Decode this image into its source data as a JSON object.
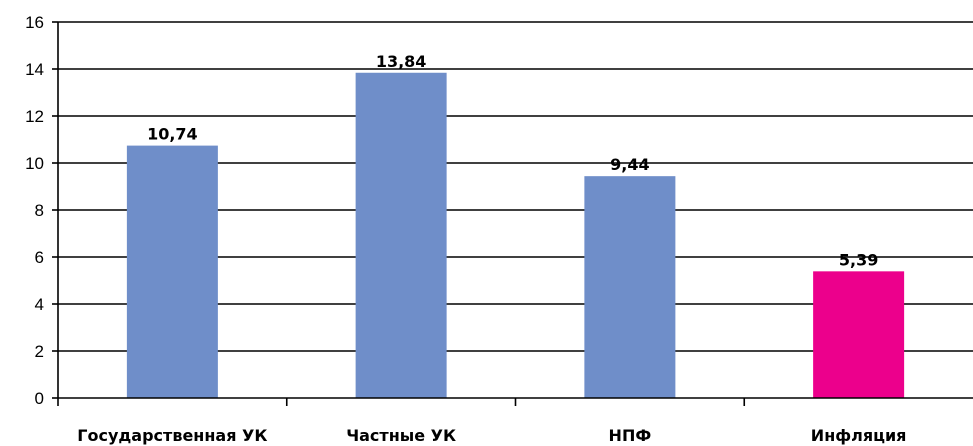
{
  "chart_data": {
    "type": "bar",
    "categories": [
      "Государственная УК",
      "Частные УК",
      "НПФ",
      "Инфляция"
    ],
    "values": [
      10.74,
      13.84,
      9.44,
      5.39
    ],
    "value_labels": [
      "10,74",
      "13,84",
      "9,44",
      "5,39"
    ],
    "bar_colors": [
      "#6f8ec9",
      "#6f8ec9",
      "#6f8ec9",
      "#ec008c"
    ],
    "ylim": [
      0,
      16
    ],
    "yticks": [
      0,
      2,
      4,
      6,
      8,
      10,
      12,
      14,
      16
    ],
    "grid": true,
    "legend": "none"
  }
}
